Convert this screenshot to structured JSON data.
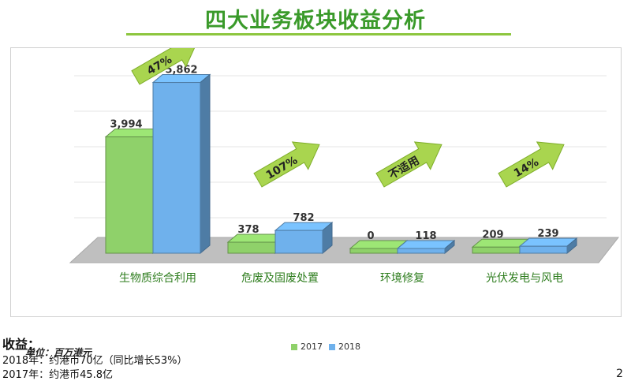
{
  "title": "四大业务板块收益分析",
  "unit_label": "单位：百万港元",
  "colors": {
    "y2017": "#8fd16a",
    "y2018": "#6fb1ec",
    "title": "#3a9a2a",
    "arrow": "#a9d54f"
  },
  "chart_data": {
    "type": "bar",
    "categories": [
      "生物质综合利用",
      "危废及固废处置",
      "环境修复",
      "光伏发电与风电"
    ],
    "series": [
      {
        "name": "2017",
        "values": [
          3994,
          378,
          0,
          209
        ]
      },
      {
        "name": "2018",
        "values": [
          5862,
          782,
          118,
          239
        ]
      }
    ],
    "value_labels": [
      [
        "3,994",
        "378",
        "0",
        "209"
      ],
      [
        "5,862",
        "782",
        "118",
        "239"
      ]
    ],
    "growth_labels": [
      "47%",
      "107%",
      "不适用",
      "14%"
    ],
    "ylim": [
      0,
      6500
    ],
    "legend_position": "bottom",
    "grid": true
  },
  "notes": {
    "heading": "收益：",
    "line1": "2018年：约港币70亿（同比增长53%）",
    "line2": "2017年：约港币45.8亿"
  },
  "page_number": "2"
}
